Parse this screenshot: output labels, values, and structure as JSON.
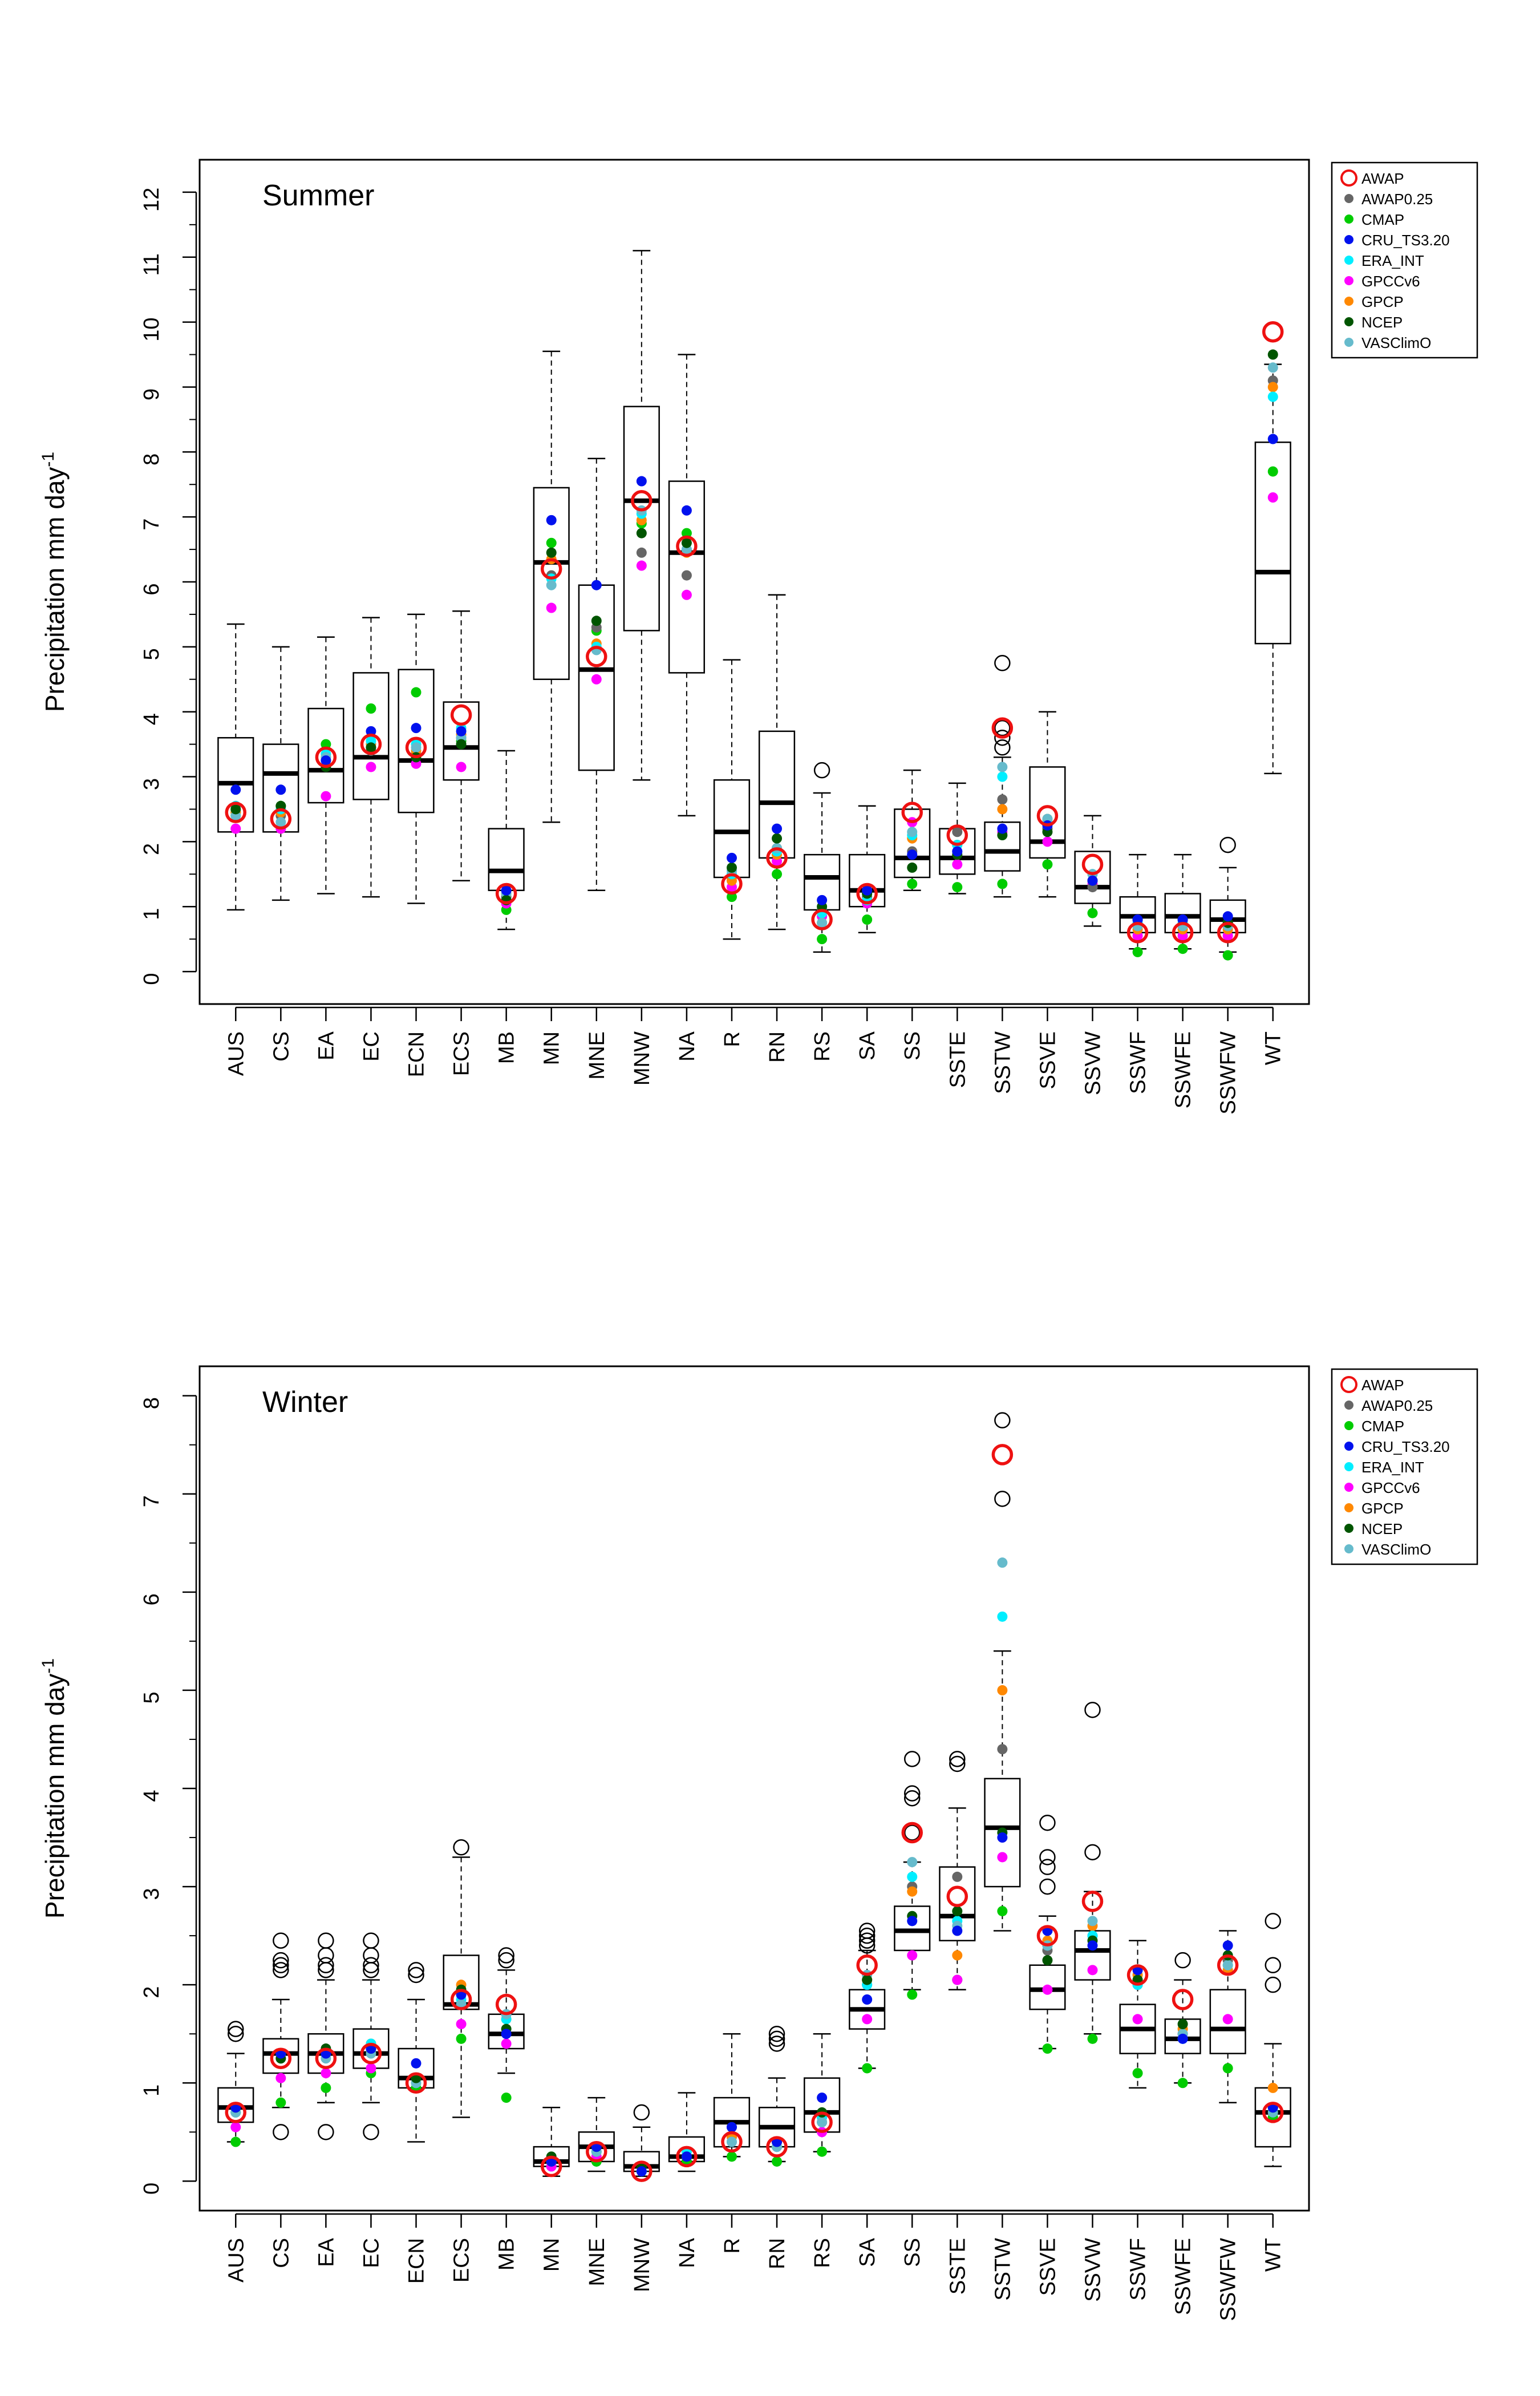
{
  "chart_data": [
    {
      "type": "box",
      "title": "Summer",
      "ylabel": "Precipitation mm  day",
      "ylabel_superscript": "-1",
      "ylim": [
        -0.5,
        12.5
      ],
      "yticks": [
        0,
        1,
        2,
        3,
        4,
        5,
        6,
        7,
        8,
        9,
        10,
        11,
        12
      ],
      "grid": false,
      "legend_position": "outside-right",
      "categories": [
        "AUS",
        "CS",
        "EA",
        "EC",
        "ECN",
        "ECS",
        "MB",
        "MN",
        "MNE",
        "MNW",
        "NA",
        "R",
        "RN",
        "RS",
        "SA",
        "SS",
        "SSTE",
        "SSTW",
        "SSVE",
        "SSVW",
        "SSWF",
        "SSWFE",
        "SSWFW",
        "WT"
      ],
      "boxes": [
        {
          "lw": 0.95,
          "q1": 2.15,
          "med": 2.9,
          "q3": 3.6,
          "uw": 5.35,
          "out": []
        },
        {
          "lw": 1.1,
          "q1": 2.15,
          "med": 3.05,
          "q3": 3.5,
          "uw": 5.0,
          "out": []
        },
        {
          "lw": 1.2,
          "q1": 2.6,
          "med": 3.1,
          "q3": 4.05,
          "uw": 5.15,
          "out": []
        },
        {
          "lw": 1.15,
          "q1": 2.65,
          "med": 3.3,
          "q3": 4.6,
          "uw": 5.45,
          "out": []
        },
        {
          "lw": 1.05,
          "q1": 2.45,
          "med": 3.25,
          "q3": 4.65,
          "uw": 5.5,
          "out": []
        },
        {
          "lw": 1.4,
          "q1": 2.95,
          "med": 3.45,
          "q3": 4.15,
          "uw": 5.55,
          "out": []
        },
        {
          "lw": 0.65,
          "q1": 1.25,
          "med": 1.55,
          "q3": 2.2,
          "uw": 3.4,
          "out": []
        },
        {
          "lw": 2.3,
          "q1": 4.5,
          "med": 6.3,
          "q3": 7.45,
          "uw": 9.55,
          "out": []
        },
        {
          "lw": 1.25,
          "q1": 3.1,
          "med": 4.65,
          "q3": 5.95,
          "uw": 7.9,
          "out": []
        },
        {
          "lw": 2.95,
          "q1": 5.25,
          "med": 7.25,
          "q3": 8.7,
          "uw": 11.1,
          "out": []
        },
        {
          "lw": 2.4,
          "q1": 4.6,
          "med": 6.45,
          "q3": 7.55,
          "uw": 9.5,
          "out": []
        },
        {
          "lw": 0.5,
          "q1": 1.45,
          "med": 2.15,
          "q3": 2.95,
          "uw": 4.8,
          "out": []
        },
        {
          "lw": 0.65,
          "q1": 1.75,
          "med": 2.6,
          "q3": 3.7,
          "uw": 5.8,
          "out": []
        },
        {
          "lw": 0.3,
          "q1": 0.95,
          "med": 1.45,
          "q3": 1.8,
          "uw": 2.75,
          "out": [
            3.1
          ]
        },
        {
          "lw": 0.6,
          "q1": 1.0,
          "med": 1.25,
          "q3": 1.8,
          "uw": 2.55,
          "out": []
        },
        {
          "lw": 1.25,
          "q1": 1.45,
          "med": 1.75,
          "q3": 2.5,
          "uw": 3.1,
          "out": []
        },
        {
          "lw": 1.2,
          "q1": 1.5,
          "med": 1.75,
          "q3": 2.2,
          "uw": 2.9,
          "out": []
        },
        {
          "lw": 1.15,
          "q1": 1.55,
          "med": 1.85,
          "q3": 2.3,
          "uw": 3.3,
          "out": [
            3.45,
            3.6,
            3.75,
            4.75
          ]
        },
        {
          "lw": 1.15,
          "q1": 1.75,
          "med": 2.0,
          "q3": 3.15,
          "uw": 4.0,
          "out": []
        },
        {
          "lw": 0.7,
          "q1": 1.05,
          "med": 1.3,
          "q3": 1.85,
          "uw": 2.4,
          "out": []
        },
        {
          "lw": 0.35,
          "q1": 0.6,
          "med": 0.85,
          "q3": 1.15,
          "uw": 1.8,
          "out": []
        },
        {
          "lw": 0.35,
          "q1": 0.6,
          "med": 0.85,
          "q3": 1.2,
          "uw": 1.8,
          "out": []
        },
        {
          "lw": 0.3,
          "q1": 0.6,
          "med": 0.8,
          "q3": 1.1,
          "uw": 1.6,
          "out": [
            1.95
          ]
        },
        {
          "lw": 3.05,
          "q1": 5.05,
          "med": 6.15,
          "q3": 8.15,
          "uw": 9.35,
          "out": []
        }
      ],
      "points": {
        "AWAP": [
          2.45,
          2.35,
          3.3,
          3.5,
          3.45,
          3.95,
          1.2,
          6.2,
          4.85,
          7.25,
          6.55,
          1.35,
          1.75,
          0.8,
          1.2,
          2.45,
          2.1,
          3.75,
          2.4,
          1.65,
          0.6,
          0.6,
          0.6,
          9.85
        ],
        "AWAP0.25": [
          2.45,
          2.4,
          3.25,
          3.4,
          3.35,
          3.6,
          1.15,
          6.1,
          5.3,
          6.45,
          6.1,
          1.45,
          1.9,
          0.95,
          1.15,
          1.85,
          2.15,
          2.65,
          2.2,
          1.3,
          0.7,
          0.7,
          0.7,
          9.1
        ],
        "CMAP": [
          2.4,
          2.55,
          3.5,
          4.05,
          4.3,
          3.55,
          0.95,
          6.6,
          5.25,
          6.9,
          6.75,
          1.15,
          1.5,
          0.5,
          0.8,
          1.35,
          1.3,
          1.35,
          1.65,
          0.9,
          0.3,
          0.35,
          0.25,
          7.7
        ],
        "CRU_TS3.20": [
          2.8,
          2.8,
          3.25,
          3.7,
          3.75,
          3.7,
          1.25,
          6.95,
          5.95,
          7.55,
          7.1,
          1.75,
          2.2,
          1.1,
          1.25,
          1.8,
          1.85,
          2.2,
          2.25,
          1.4,
          0.8,
          0.8,
          0.85,
          8.2
        ],
        "ERA_INT": [
          2.55,
          2.5,
          3.35,
          3.55,
          3.5,
          3.75,
          1.1,
          6.05,
          5.0,
          7.05,
          6.5,
          1.5,
          1.85,
          0.9,
          1.1,
          2.1,
          1.95,
          3.0,
          2.3,
          1.5,
          0.75,
          0.75,
          0.75,
          8.85
        ],
        "GPCCv6": [
          2.2,
          2.2,
          2.7,
          3.15,
          3.2,
          3.15,
          1.05,
          5.6,
          4.5,
          6.25,
          5.8,
          1.3,
          1.7,
          0.85,
          1.05,
          2.3,
          1.65,
          2.15,
          2.0,
          1.35,
          0.55,
          0.55,
          0.55,
          7.3
        ],
        "GPCP": [
          2.45,
          2.45,
          3.3,
          3.5,
          3.4,
          3.65,
          1.2,
          6.35,
          5.05,
          6.95,
          6.45,
          1.4,
          1.8,
          0.75,
          1.1,
          2.05,
          1.95,
          2.5,
          2.35,
          1.4,
          0.65,
          0.65,
          0.65,
          9.0
        ],
        "NCEP": [
          2.5,
          2.55,
          3.15,
          3.45,
          3.3,
          3.5,
          1.1,
          6.45,
          5.4,
          6.75,
          6.6,
          1.6,
          2.05,
          1.0,
          1.2,
          1.6,
          1.8,
          2.1,
          2.15,
          1.4,
          0.8,
          0.8,
          0.75,
          9.5
        ],
        "VASClimO": [
          2.4,
          2.3,
          3.3,
          3.45,
          3.45,
          3.6,
          1.2,
          5.95,
          4.95,
          7.1,
          6.5,
          1.55,
          1.9,
          0.75,
          1.2,
          2.15,
          1.85,
          3.15,
          2.35,
          1.5,
          0.7,
          0.7,
          0.7,
          9.3
        ]
      },
      "legend": [
        "AWAP",
        "AWAP0.25",
        "CMAP",
        "CRU_TS3.20",
        "ERA_INT",
        "GPCCv6",
        "GPCP",
        "NCEP",
        "VASClimO"
      ],
      "colors": {
        "AWAP": "#ee1111",
        "AWAP0.25": "#666666",
        "CMAP": "#00cc00",
        "CRU_TS3.20": "#0011ee",
        "ERA_INT": "#00eeff",
        "GPCCv6": "#ff00ff",
        "GPCP": "#ff8800",
        "NCEP": "#005500",
        "VASClimO": "#66bbcc"
      }
    },
    {
      "type": "box",
      "title": "Winter",
      "ylabel": "Precipitation mm  day",
      "ylabel_superscript": "-1",
      "ylim": [
        -0.3,
        8.3
      ],
      "yticks": [
        0,
        1,
        2,
        3,
        4,
        5,
        6,
        7,
        8
      ],
      "grid": false,
      "legend_position": "outside-right",
      "categories": [
        "AUS",
        "CS",
        "EA",
        "EC",
        "ECN",
        "ECS",
        "MB",
        "MN",
        "MNE",
        "MNW",
        "NA",
        "R",
        "RN",
        "RS",
        "SA",
        "SS",
        "SSTE",
        "SSTW",
        "SSVE",
        "SSVW",
        "SSWF",
        "SSWFE",
        "SSWFW",
        "WT"
      ],
      "boxes": [
        {
          "lw": 0.4,
          "q1": 0.6,
          "med": 0.75,
          "q3": 0.95,
          "uw": 1.3,
          "out": [
            1.5,
            1.55
          ]
        },
        {
          "lw": 0.75,
          "q1": 1.1,
          "med": 1.3,
          "q3": 1.45,
          "uw": 1.85,
          "out": [
            0.5,
            2.15,
            2.2,
            2.25,
            2.45
          ]
        },
        {
          "lw": 0.8,
          "q1": 1.1,
          "med": 1.3,
          "q3": 1.5,
          "uw": 2.05,
          "out": [
            0.5,
            2.15,
            2.2,
            2.3,
            2.45
          ]
        },
        {
          "lw": 0.8,
          "q1": 1.15,
          "med": 1.3,
          "q3": 1.55,
          "uw": 2.05,
          "out": [
            0.5,
            2.15,
            2.2,
            2.3,
            2.45
          ]
        },
        {
          "lw": 0.4,
          "q1": 0.95,
          "med": 1.05,
          "q3": 1.35,
          "uw": 1.85,
          "out": [
            2.1,
            2.15
          ]
        },
        {
          "lw": 0.65,
          "q1": 1.75,
          "med": 1.8,
          "q3": 2.3,
          "uw": 3.3,
          "out": [
            3.4
          ]
        },
        {
          "lw": 1.1,
          "q1": 1.35,
          "med": 1.5,
          "q3": 1.7,
          "uw": 2.15,
          "out": [
            2.25,
            2.3
          ]
        },
        {
          "lw": 0.05,
          "q1": 0.15,
          "med": 0.2,
          "q3": 0.35,
          "uw": 0.75,
          "out": []
        },
        {
          "lw": 0.1,
          "q1": 0.2,
          "med": 0.35,
          "q3": 0.5,
          "uw": 0.85,
          "out": []
        },
        {
          "lw": 0.05,
          "q1": 0.1,
          "med": 0.15,
          "q3": 0.3,
          "uw": 0.55,
          "out": [
            0.7
          ]
        },
        {
          "lw": 0.1,
          "q1": 0.2,
          "med": 0.25,
          "q3": 0.45,
          "uw": 0.9,
          "out": []
        },
        {
          "lw": 0.25,
          "q1": 0.35,
          "med": 0.6,
          "q3": 0.85,
          "uw": 1.5,
          "out": []
        },
        {
          "lw": 0.2,
          "q1": 0.35,
          "med": 0.55,
          "q3": 0.75,
          "uw": 1.05,
          "out": [
            1.4,
            1.45,
            1.5
          ]
        },
        {
          "lw": 0.3,
          "q1": 0.5,
          "med": 0.7,
          "q3": 1.05,
          "uw": 1.5,
          "out": []
        },
        {
          "lw": 1.15,
          "q1": 1.55,
          "med": 1.75,
          "q3": 1.95,
          "uw": 2.35,
          "out": [
            2.4,
            2.45,
            2.5,
            2.55
          ]
        },
        {
          "lw": 1.95,
          "q1": 2.35,
          "med": 2.55,
          "q3": 2.8,
          "uw": 3.25,
          "out": [
            3.55,
            3.9,
            3.95,
            4.3
          ]
        },
        {
          "lw": 1.95,
          "q1": 2.45,
          "med": 2.7,
          "q3": 3.2,
          "uw": 3.8,
          "out": [
            4.25,
            4.3
          ]
        },
        {
          "lw": 2.55,
          "q1": 3.0,
          "med": 3.6,
          "q3": 4.1,
          "uw": 5.4,
          "out": [
            6.95,
            7.75
          ]
        },
        {
          "lw": 1.35,
          "q1": 1.75,
          "med": 1.95,
          "q3": 2.2,
          "uw": 2.7,
          "out": [
            3.0,
            3.2,
            3.3,
            3.65
          ]
        },
        {
          "lw": 1.5,
          "q1": 2.05,
          "med": 2.35,
          "q3": 2.55,
          "uw": 2.95,
          "out": [
            3.35,
            4.8
          ]
        },
        {
          "lw": 0.95,
          "q1": 1.3,
          "med": 1.55,
          "q3": 1.8,
          "uw": 2.45,
          "out": []
        },
        {
          "lw": 1.0,
          "q1": 1.3,
          "med": 1.45,
          "q3": 1.65,
          "uw": 2.05,
          "out": [
            2.25
          ]
        },
        {
          "lw": 0.8,
          "q1": 1.3,
          "med": 1.55,
          "q3": 1.95,
          "uw": 2.55,
          "out": []
        },
        {
          "lw": 0.15,
          "q1": 0.35,
          "med": 0.7,
          "q3": 0.95,
          "uw": 1.4,
          "out": [
            2.0,
            2.2,
            2.65
          ]
        }
      ],
      "points": {
        "AWAP": [
          0.7,
          1.25,
          1.25,
          1.3,
          1.0,
          1.85,
          1.8,
          0.15,
          0.3,
          0.1,
          0.25,
          0.4,
          0.35,
          0.6,
          2.2,
          3.55,
          2.9,
          7.4,
          2.5,
          2.85,
          2.1,
          1.85,
          2.2,
          0.7
        ],
        "AWAP0.25": [
          0.7,
          1.3,
          1.3,
          1.35,
          1.05,
          1.9,
          1.7,
          0.2,
          0.3,
          0.1,
          0.25,
          0.45,
          0.35,
          0.6,
          2.0,
          3.0,
          3.1,
          4.4,
          2.35,
          2.5,
          2.0,
          1.5,
          2.25,
          0.75
        ],
        "CMAP": [
          0.4,
          0.8,
          0.95,
          1.1,
          0.95,
          1.45,
          0.85,
          0.15,
          0.2,
          0.1,
          0.2,
          0.25,
          0.2,
          0.3,
          1.15,
          1.9,
          2.05,
          2.75,
          1.35,
          1.45,
          1.1,
          1.0,
          1.15,
          0.65
        ],
        "CRU_TS3.20": [
          0.75,
          1.3,
          1.3,
          1.35,
          1.2,
          1.9,
          1.5,
          0.2,
          0.35,
          0.1,
          0.25,
          0.55,
          0.4,
          0.85,
          1.85,
          2.65,
          2.55,
          3.5,
          2.55,
          2.4,
          2.15,
          1.45,
          2.4,
          0.75
        ],
        "ERA_INT": [
          0.7,
          1.3,
          1.3,
          1.4,
          1.0,
          1.85,
          1.65,
          0.2,
          0.3,
          0.1,
          0.3,
          0.4,
          0.35,
          0.65,
          2.0,
          3.1,
          2.65,
          5.75,
          2.4,
          2.5,
          2.0,
          1.45,
          2.2,
          0.75
        ],
        "GPCCv6": [
          0.55,
          1.05,
          1.1,
          1.15,
          1.05,
          1.6,
          1.4,
          0.15,
          0.25,
          0.1,
          0.25,
          0.4,
          0.35,
          0.5,
          1.65,
          2.3,
          2.05,
          3.3,
          1.95,
          2.15,
          1.65,
          1.5,
          1.65,
          0.75
        ],
        "GPCP": [
          0.7,
          1.3,
          1.3,
          1.4,
          1.0,
          2.0,
          1.65,
          0.2,
          0.35,
          0.15,
          0.3,
          0.45,
          0.4,
          0.65,
          2.05,
          2.95,
          2.3,
          5.0,
          2.45,
          2.6,
          2.1,
          1.55,
          2.15,
          0.95
        ],
        "NCEP": [
          0.75,
          1.25,
          1.35,
          1.35,
          1.05,
          1.95,
          1.55,
          0.25,
          0.35,
          0.15,
          0.25,
          0.55,
          0.4,
          0.7,
          2.05,
          2.7,
          2.75,
          3.55,
          2.25,
          2.45,
          2.05,
          1.6,
          2.3,
          0.75
        ],
        "VASClimO": [
          0.7,
          1.25,
          1.25,
          1.3,
          1.0,
          1.8,
          1.7,
          0.2,
          0.3,
          0.1,
          0.25,
          0.4,
          0.35,
          0.6,
          2.1,
          3.25,
          2.6,
          6.3,
          2.4,
          2.65,
          2.05,
          1.5,
          2.2,
          0.7
        ]
      },
      "legend": [
        "AWAP",
        "AWAP0.25",
        "CMAP",
        "CRU_TS3.20",
        "ERA_INT",
        "GPCCv6",
        "GPCP",
        "NCEP",
        "VASClimO"
      ],
      "colors": {
        "AWAP": "#ee1111",
        "AWAP0.25": "#666666",
        "CMAP": "#00cc00",
        "CRU_TS3.20": "#0011ee",
        "ERA_INT": "#00eeff",
        "GPCCv6": "#ff00ff",
        "GPCP": "#ff8800",
        "NCEP": "#005500",
        "VASClimO": "#66bbcc"
      }
    }
  ]
}
